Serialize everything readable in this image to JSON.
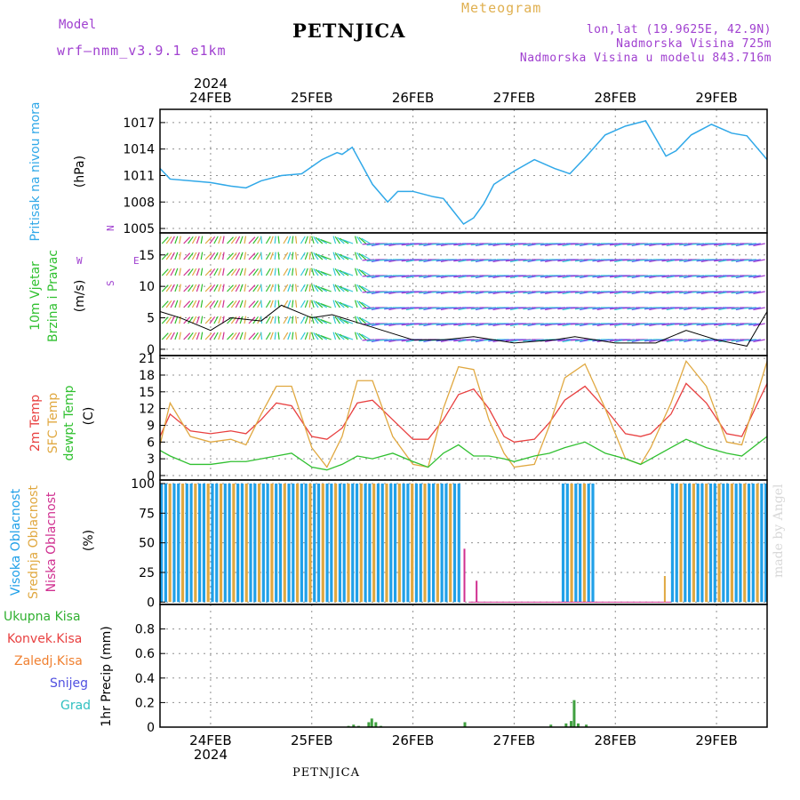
{
  "header": {
    "model_label": "Model",
    "model_version": "wrf–nmm_v3.9.1 e1km",
    "station": "PETNJICA",
    "meteogram": "Meteogram",
    "lonlat": "lon,lat (19.9625E, 42.9N)",
    "elevation": "Nadmorska Visina 725m",
    "model_elevation": "Nadmorska Visina u modelu 843.716m"
  },
  "footer": {
    "station": "PETNJICA",
    "made_by": "made by Angel"
  },
  "colors": {
    "pressure": "#30a8e8",
    "temp": "#e84040",
    "sfc": "#e0a840",
    "dewpt": "#30c030",
    "high_cloud": "#20a0e8",
    "mid_cloud": "#e0a840",
    "low_cloud": "#d03090",
    "precip": "#40a040",
    "frame": "#000000",
    "grid": "#a0a0a0"
  },
  "axis": {
    "year": "2024",
    "days": [
      "24FEB",
      "25FEB",
      "26FEB",
      "27FEB",
      "28FEB",
      "29FEB"
    ]
  },
  "panel_labels": {
    "pressure": [
      "Pritisak na nivou mora",
      "(hPa)"
    ],
    "wind": [
      "10m Vjetar",
      "Brzina i Pravac",
      "(m/s)"
    ],
    "temp": [
      "2m Temp",
      "SFC Temp",
      "dewpt Temp",
      "(C)"
    ],
    "cloud": [
      "Visoka Oblacnost",
      "Srednja Oblacnost",
      "Niska Oblacnost",
      "(%)"
    ],
    "precip": [
      "1hr Precip (mm)"
    ],
    "compass": [
      "N",
      "<–",
      "–>",
      "W",
      "E",
      "S"
    ]
  },
  "precip_legend": [
    "Ukupna Kisa",
    "Konvek.Kisa",
    "Zaledj.Kisa",
    "Snijeg",
    "Grad"
  ],
  "precip_legend_colors": [
    "#30b030",
    "#e84040",
    "#f08030",
    "#5050e0",
    "#30c0c0"
  ],
  "chart_data": [
    {
      "type": "line",
      "name": "pressure",
      "ylim": [
        1004.5,
        1018.5
      ],
      "yticks": [
        1005,
        1008,
        1011,
        1014,
        1017
      ],
      "xlim": [
        23.5,
        29.5
      ],
      "x": [
        23.5,
        23.6,
        23.8,
        24.0,
        24.2,
        24.35,
        24.5,
        24.7,
        24.9,
        25.1,
        25.25,
        25.3,
        25.4,
        25.6,
        25.75,
        25.85,
        26.0,
        26.2,
        26.3,
        26.5,
        26.6,
        26.7,
        26.8,
        27.0,
        27.2,
        27.4,
        27.55,
        27.7,
        27.9,
        28.1,
        28.3,
        28.5,
        28.6,
        28.75,
        28.95,
        29.15,
        29.3,
        29.5
      ],
      "y": [
        1011.8,
        1010.6,
        1010.4,
        1010.2,
        1009.8,
        1009.6,
        1010.4,
        1011.0,
        1011.2,
        1012.8,
        1013.6,
        1013.4,
        1014.2,
        1010.0,
        1008.0,
        1009.2,
        1009.2,
        1008.6,
        1008.4,
        1005.5,
        1006.2,
        1007.8,
        1010.0,
        1011.5,
        1012.8,
        1011.8,
        1011.2,
        1013.0,
        1015.6,
        1016.6,
        1017.2,
        1013.2,
        1013.8,
        1015.6,
        1016.8,
        1015.8,
        1015.5,
        1012.8
      ]
    },
    {
      "type": "line",
      "name": "temperature",
      "ylim": [
        -0.8,
        21.5
      ],
      "yticks": [
        0,
        3,
        6,
        9,
        12,
        15,
        18,
        21
      ],
      "xlim": [
        23.5,
        29.5
      ],
      "x": [
        23.5,
        23.6,
        23.8,
        24.0,
        24.2,
        24.35,
        24.5,
        24.65,
        24.8,
        25.0,
        25.15,
        25.3,
        25.45,
        25.6,
        25.8,
        26.0,
        26.15,
        26.3,
        26.45,
        26.6,
        26.75,
        26.9,
        27.0,
        27.2,
        27.35,
        27.5,
        27.7,
        27.9,
        28.1,
        28.25,
        28.35,
        28.55,
        28.7,
        28.9,
        29.1,
        29.25,
        29.5
      ],
      "series": [
        {
          "name": "2m Temp",
          "color": "#e84040",
          "values": [
            7,
            11,
            8,
            7.5,
            8,
            7.5,
            10,
            13,
            12.5,
            7,
            6.5,
            8.5,
            13,
            13.5,
            10,
            6.5,
            6.5,
            10,
            14.5,
            15.5,
            12,
            7,
            6,
            6.5,
            9.5,
            13.5,
            16,
            12,
            7.5,
            7,
            7.5,
            11,
            16.5,
            13,
            7.5,
            7,
            16.5
          ]
        },
        {
          "name": "SFC Temp",
          "color": "#e0a840",
          "values": [
            5.5,
            13,
            7,
            6,
            6.5,
            5.5,
            11,
            16,
            16,
            5,
            1.5,
            7,
            17,
            17,
            7,
            2,
            1.5,
            12,
            19.5,
            19,
            10,
            4,
            1.5,
            2,
            9,
            17.5,
            20,
            12,
            3,
            2,
            5,
            13,
            20.5,
            16,
            6,
            5.5,
            20.5
          ]
        },
        {
          "name": "dewpt Temp",
          "color": "#30c030",
          "values": [
            4.5,
            3.5,
            2,
            2,
            2.5,
            2.5,
            3,
            3.5,
            4,
            1.5,
            1,
            2,
            3.5,
            3,
            4,
            2.5,
            1.5,
            4,
            5.5,
            3.5,
            3.5,
            3,
            2.5,
            3.5,
            4,
            5,
            6,
            4,
            3,
            2,
            3,
            5,
            6.5,
            5,
            4,
            3.5,
            7
          ]
        }
      ]
    },
    {
      "type": "bar",
      "name": "cloud cover",
      "ylim": [
        -2,
        103
      ],
      "yticks": [
        0,
        25,
        50,
        75,
        100
      ],
      "segments_100pct": [
        [
          23.5,
          26.48
        ],
        [
          27.47,
          27.78
        ],
        [
          28.55,
          29.5
        ]
      ],
      "notes": "High/mid clouds ~100% while present; thin low-cloud bars near 26.5, 26.6, 28.5"
    },
    {
      "type": "bar",
      "name": "1hr precipitation",
      "ylim": [
        0,
        1.0
      ],
      "yticks": [
        0,
        0.2,
        0.4,
        0.6,
        0.8
      ],
      "x": [
        25.35,
        25.4,
        25.45,
        25.55,
        25.58,
        25.62,
        25.67,
        26.5,
        27.35,
        27.5,
        27.55,
        27.58,
        27.62,
        27.7
      ],
      "values": [
        0.01,
        0.02,
        0.01,
        0.04,
        0.07,
        0.04,
        0.01,
        0.04,
        0.02,
        0.03,
        0.05,
        0.22,
        0.03,
        0.02
      ]
    },
    {
      "type": "wind-barbs",
      "name": "10m wind",
      "ylim": [
        -1,
        18.5
      ],
      "yticks": [
        0,
        5,
        10,
        15
      ],
      "speed_x": [
        23.5,
        23.7,
        24.0,
        24.2,
        24.5,
        24.7,
        25.0,
        25.2,
        25.4,
        25.7,
        26.0,
        26.3,
        26.6,
        27.0,
        27.4,
        27.6,
        28.0,
        28.4,
        28.7,
        29.0,
        29.3,
        29.5
      ],
      "speed": [
        6,
        5,
        3,
        5,
        4.5,
        7,
        5,
        5.5,
        4.5,
        3,
        1.5,
        1.5,
        2,
        1,
        1.5,
        2,
        1,
        1,
        3,
        1.5,
        0.5,
        6
      ]
    }
  ]
}
